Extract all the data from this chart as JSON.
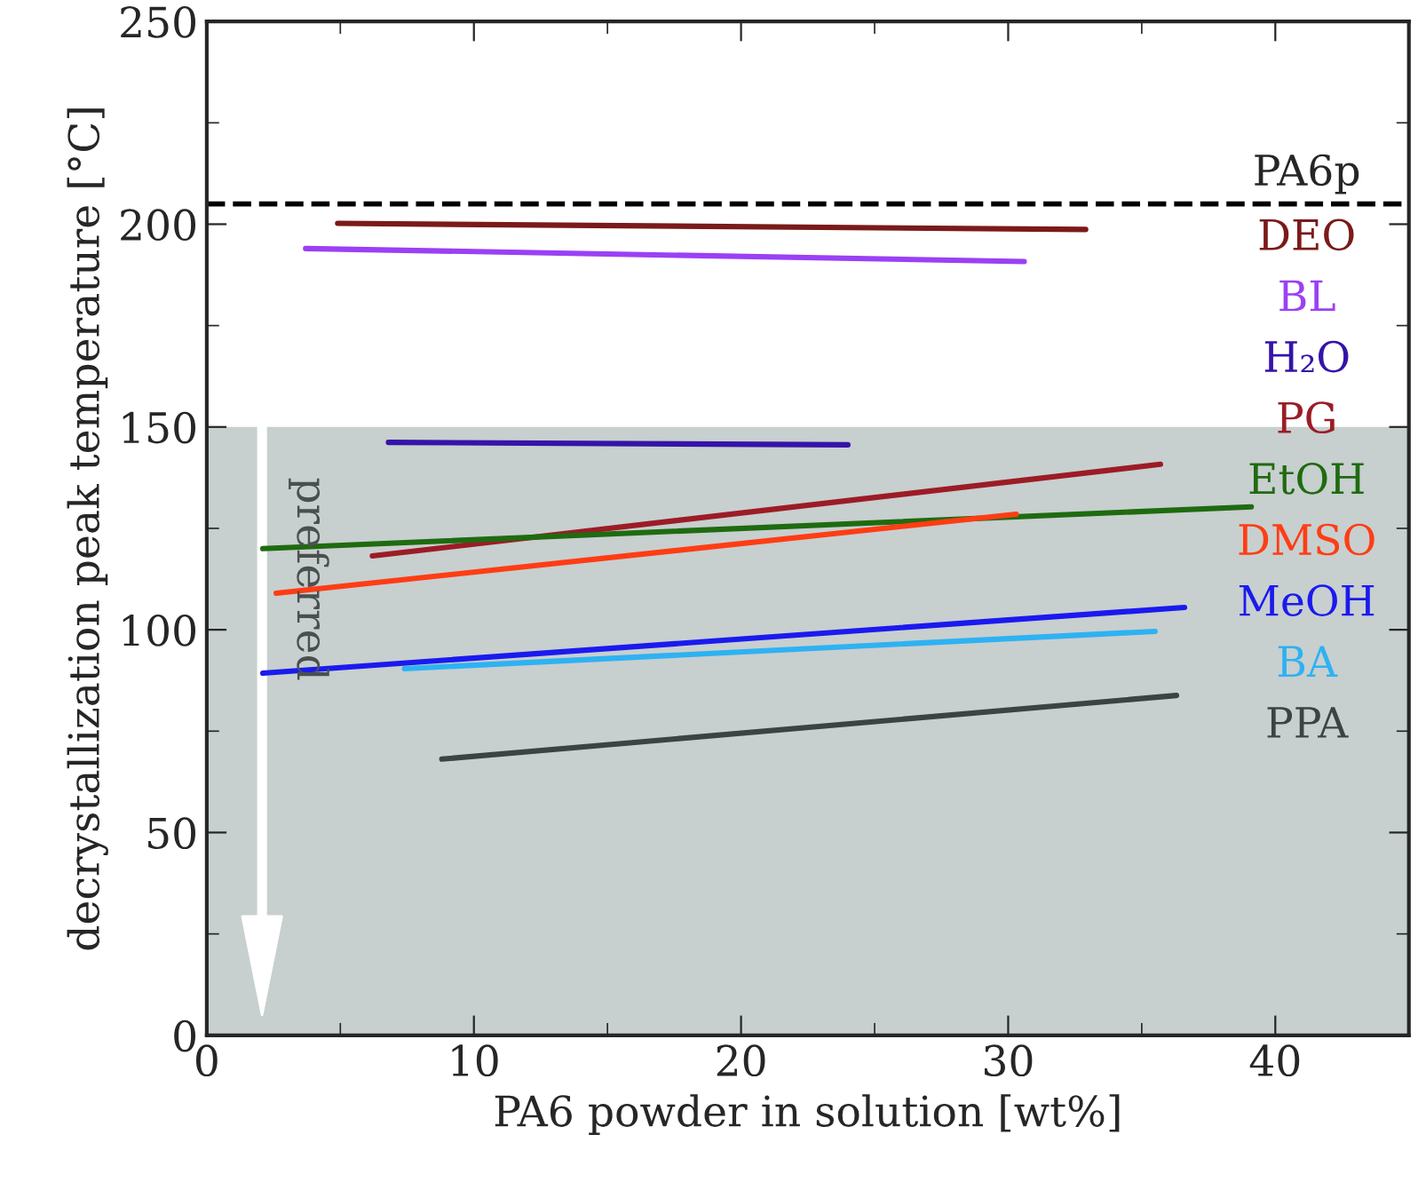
{
  "chart_data": {
    "type": "line",
    "xlabel": "PA6 powder in solution [wt%]",
    "ylabel": "decrystallization peak temperature [°C]",
    "xlim": [
      0,
      45
    ],
    "xticks": [
      0,
      10,
      20,
      30,
      40
    ],
    "ylim": [
      0,
      250
    ],
    "yticks": [
      0,
      50,
      100,
      150,
      200,
      250
    ],
    "grid": false,
    "legend": false,
    "marker": "none",
    "line_style": "solid",
    "series": [
      {
        "name": "DEO",
        "color": "#7b1a1a",
        "x": [
          4.9,
          32.9
        ],
        "values": [
          200.2,
          198.7
        ]
      },
      {
        "name": "BL",
        "color": "#9b40f5",
        "x": [
          3.7,
          30.6
        ],
        "values": [
          194,
          190.8
        ]
      },
      {
        "name": "H₂O",
        "color": "#3514a8",
        "x": [
          6.8,
          24.0
        ],
        "values": [
          146.2,
          145.6
        ]
      },
      {
        "name": "PG",
        "color": "#9c1c26",
        "x": [
          6.2,
          35.7
        ],
        "values": [
          118.2,
          140.8
        ]
      },
      {
        "name": "EtOH",
        "color": "#1f6b10",
        "x": [
          2.1,
          39.1
        ],
        "values": [
          120,
          130.3
        ]
      },
      {
        "name": "DMSO",
        "color": "#ff3d14",
        "x": [
          2.6,
          30.3
        ],
        "values": [
          109,
          128.5
        ]
      },
      {
        "name": "MeOH",
        "color": "#1a1aef",
        "x": [
          2.1,
          36.6
        ],
        "values": [
          89.3,
          105.5
        ]
      },
      {
        "name": "BA",
        "color": "#2eb2f2",
        "x": [
          7.4,
          35.5
        ],
        "values": [
          90.4,
          99.6
        ]
      },
      {
        "name": "PPA",
        "color": "#3a4444",
        "x": [
          8.8,
          36.3
        ],
        "values": [
          68.1,
          83.8
        ]
      }
    ],
    "ref_lines": [
      {
        "axis": "y",
        "value": 205,
        "label": "PA6p",
        "color": "#000000",
        "line_style": "dashed"
      }
    ],
    "bands": [
      {
        "axis": "y",
        "from": 0,
        "to": 150,
        "color": "#c8cfcf"
      }
    ],
    "annotations": [
      "preferred"
    ]
  }
}
